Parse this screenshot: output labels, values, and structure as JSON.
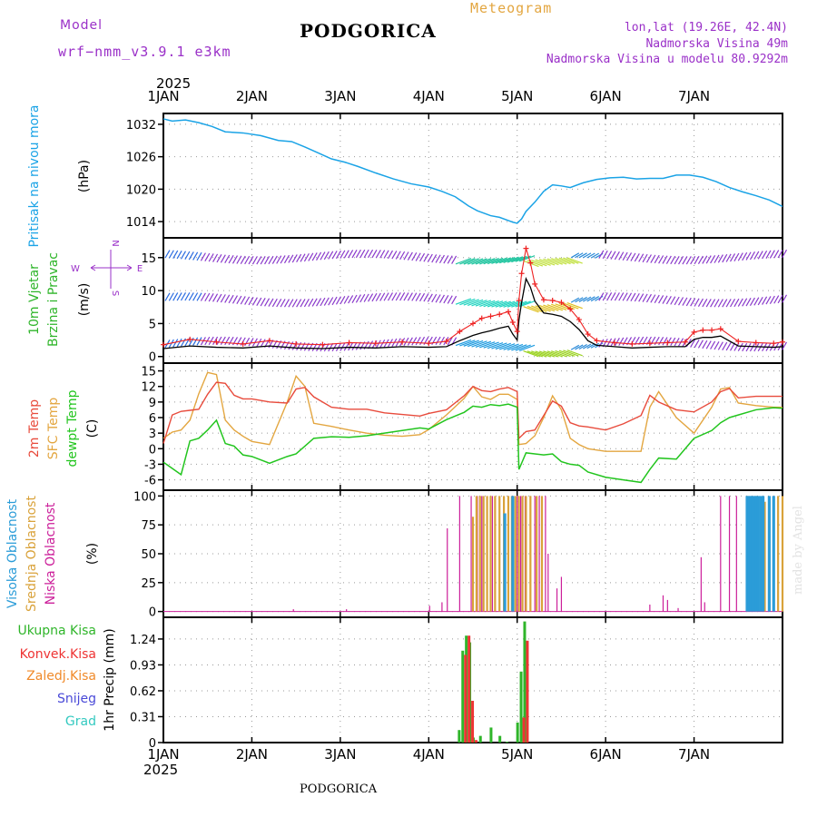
{
  "header": {
    "model_label": "Model",
    "model_name": "wrf−nmm_v3.9.1  e3km",
    "location": "PODGORICA",
    "product": "Meteogram",
    "lonlat": "lon,lat (19.26E, 42.4N)",
    "elevation": "Nadmorska Visina 49m",
    "model_elevation": "Nadmorska Visina u modelu 80.9292m"
  },
  "footer": {
    "location": "PODGORICA",
    "watermark": "made by Angel"
  },
  "colors": {
    "pressure": "#1aa3e6",
    "speed": "#000000",
    "gust": "#ee2222",
    "temp2m": "#e84b3c",
    "sfc": "#e3a640",
    "dew": "#22c51e",
    "high": "#2b9cd8",
    "mid": "#d9a23a",
    "low": "#cc1f9a",
    "total": "#2fb52a",
    "conv": "#ee3333",
    "frozen": "#f08a2a",
    "snow": "#4a4ad8",
    "grad": "#33c9c0",
    "wind_upper": "#9a30c8"
  },
  "time_axis": {
    "year": "2025",
    "days": [
      "1JAN",
      "2JAN",
      "3JAN",
      "4JAN",
      "5JAN",
      "6JAN",
      "7JAN"
    ]
  },
  "chart_data": [
    {
      "type": "line",
      "id": "pressure",
      "ylabel": "(hPa)",
      "title": "Pritisak na nivou mora",
      "yticks": [
        1014,
        1020,
        1026,
        1032
      ],
      "ylim": [
        1011,
        1034
      ],
      "series": [
        {
          "name": "MSLP",
          "x": [
            0,
            0.1,
            0.25,
            0.4,
            0.55,
            0.7,
            0.9,
            1.1,
            1.3,
            1.45,
            1.6,
            1.75,
            1.9,
            2.05,
            2.2,
            2.4,
            2.6,
            2.8,
            3.0,
            3.15,
            3.3,
            3.45,
            3.55,
            3.7,
            3.8,
            3.9,
            3.95,
            4.0,
            4.05,
            4.1,
            4.2,
            4.3,
            4.4,
            4.5,
            4.6,
            4.75,
            4.9,
            5.05,
            5.2,
            5.35,
            5.5,
            5.65,
            5.8,
            5.95,
            6.1,
            6.25,
            6.4,
            6.55,
            6.7,
            6.85,
            7.0
          ],
          "values": [
            1033,
            1032.6,
            1032.8,
            1032.3,
            1031.6,
            1030.6,
            1030.4,
            1029.9,
            1029.0,
            1028.8,
            1027.8,
            1026.7,
            1025.6,
            1025.0,
            1024.2,
            1023.0,
            1021.9,
            1021.0,
            1020.4,
            1019.6,
            1018.6,
            1016.9,
            1016.0,
            1015.1,
            1014.8,
            1014.2,
            1013.9,
            1013.7,
            1014.5,
            1015.9,
            1017.6,
            1019.6,
            1020.8,
            1020.6,
            1020.3,
            1021.2,
            1021.8,
            1022.1,
            1022.2,
            1021.9,
            1022.0,
            1022.0,
            1022.6,
            1022.6,
            1022.2,
            1021.4,
            1020.3,
            1019.5,
            1018.8,
            1018.0,
            1016.8
          ]
        }
      ]
    },
    {
      "type": "line",
      "id": "wind",
      "title": "10m Vjetar Brzina i Pravac",
      "ylabel": "(m/s)",
      "compass": {
        "n": "N",
        "s": "S",
        "e": "E",
        "w": "W"
      },
      "yticks": [
        0,
        5,
        10,
        15
      ],
      "ylim": [
        -1,
        18
      ],
      "series": [
        {
          "name": "speed",
          "x": [
            0,
            0.3,
            0.6,
            0.9,
            1.2,
            1.5,
            1.8,
            2.1,
            2.4,
            2.7,
            3.0,
            3.2,
            3.35,
            3.5,
            3.6,
            3.7,
            3.8,
            3.9,
            3.95,
            4.0,
            4.02,
            4.05,
            4.1,
            4.15,
            4.2,
            4.3,
            4.4,
            4.5,
            4.6,
            4.7,
            4.8,
            4.9,
            5.1,
            5.3,
            5.5,
            5.7,
            5.9,
            6.0,
            6.1,
            6.2,
            6.3,
            6.5,
            6.7,
            6.9,
            7.0
          ],
          "values": [
            1.2,
            1.6,
            1.4,
            1.3,
            1.6,
            1.3,
            1.2,
            1.4,
            1.3,
            1.5,
            1.4,
            1.5,
            2.4,
            3.2,
            3.6,
            3.9,
            4.3,
            4.6,
            3.4,
            2.5,
            5.5,
            8.2,
            11.8,
            10.5,
            8.4,
            6.6,
            6.4,
            6.1,
            5.3,
            4.1,
            2.4,
            1.7,
            1.5,
            1.3,
            1.4,
            1.5,
            1.5,
            2.6,
            2.9,
            2.9,
            3.1,
            1.6,
            1.5,
            1.4,
            1.5
          ]
        },
        {
          "name": "gust",
          "x": [
            0,
            0.3,
            0.6,
            0.9,
            1.2,
            1.5,
            1.8,
            2.1,
            2.4,
            2.7,
            3.0,
            3.2,
            3.35,
            3.5,
            3.6,
            3.7,
            3.8,
            3.9,
            3.95,
            4.0,
            4.02,
            4.05,
            4.1,
            4.15,
            4.2,
            4.3,
            4.4,
            4.5,
            4.6,
            4.7,
            4.8,
            4.9,
            5.1,
            5.3,
            5.5,
            5.7,
            5.9,
            6.0,
            6.1,
            6.2,
            6.3,
            6.5,
            6.7,
            6.9,
            7.0
          ],
          "values": [
            1.8,
            2.6,
            2.2,
            1.9,
            2.4,
            1.9,
            1.8,
            2.1,
            2.0,
            2.2,
            2.0,
            2.3,
            3.8,
            5.0,
            5.8,
            6.1,
            6.4,
            6.8,
            5.2,
            3.8,
            8.5,
            12.6,
            16.4,
            14.2,
            11.0,
            8.6,
            8.5,
            8.2,
            7.2,
            5.6,
            3.4,
            2.4,
            2.1,
            1.9,
            2.0,
            2.1,
            2.2,
            3.7,
            4.0,
            4.0,
            4.2,
            2.3,
            2.1,
            2.0,
            2.2
          ]
        }
      ]
    },
    {
      "type": "line",
      "id": "temperature",
      "ylabel": "(C)",
      "titles": [
        "2m Temp",
        "SFC Temp",
        "dewpt Temp"
      ],
      "yticks": [
        -6,
        -3,
        0,
        3,
        6,
        9,
        12,
        15
      ],
      "ylim": [
        -8,
        16.5
      ],
      "series": [
        {
          "name": "2m Temp",
          "x": [
            0,
            0.1,
            0.2,
            0.3,
            0.4,
            0.5,
            0.6,
            0.7,
            0.8,
            0.9,
            1.0,
            1.2,
            1.4,
            1.5,
            1.6,
            1.7,
            1.9,
            2.1,
            2.3,
            2.5,
            2.7,
            2.9,
            3.0,
            3.2,
            3.4,
            3.5,
            3.6,
            3.7,
            3.8,
            3.9,
            4.0,
            4.02,
            4.1,
            4.2,
            4.3,
            4.4,
            4.5,
            4.6,
            4.7,
            4.8,
            5.0,
            5.2,
            5.4,
            5.5,
            5.6,
            5.8,
            6.0,
            6.2,
            6.3,
            6.4,
            6.5,
            6.7,
            6.9,
            7.0
          ],
          "values": [
            1,
            6.5,
            7.2,
            7.4,
            7.6,
            10.5,
            12.8,
            12.6,
            10.3,
            9.6,
            9.6,
            9.0,
            8.8,
            11.5,
            11.8,
            10.0,
            8.0,
            7.6,
            7.6,
            6.9,
            6.6,
            6.3,
            6.8,
            7.5,
            10.2,
            12.0,
            11.2,
            11.0,
            11.5,
            11.8,
            11.0,
            2.0,
            3.3,
            3.6,
            6.4,
            9.2,
            8.2,
            5.0,
            4.4,
            4.2,
            3.6,
            4.8,
            6.4,
            10.3,
            9.0,
            7.5,
            7.1,
            9.0,
            11.0,
            11.6,
            9.8,
            10.1,
            10.1,
            10.1
          ]
        },
        {
          "name": "SFC Temp",
          "x": [
            0,
            0.1,
            0.2,
            0.3,
            0.4,
            0.5,
            0.6,
            0.7,
            0.8,
            0.9,
            1.0,
            1.2,
            1.4,
            1.5,
            1.6,
            1.7,
            1.9,
            2.1,
            2.3,
            2.5,
            2.7,
            2.9,
            3.0,
            3.2,
            3.4,
            3.5,
            3.6,
            3.7,
            3.8,
            3.9,
            4.0,
            4.02,
            4.1,
            4.2,
            4.3,
            4.4,
            4.5,
            4.6,
            4.7,
            4.8,
            5.0,
            5.2,
            5.4,
            5.5,
            5.6,
            5.8,
            6.0,
            6.2,
            6.3,
            6.4,
            6.5,
            6.7,
            6.9,
            7.0
          ],
          "values": [
            2.0,
            3.2,
            3.6,
            5.5,
            10.6,
            14.7,
            14.3,
            5.5,
            3.6,
            2.4,
            1.4,
            0.8,
            9.0,
            14.0,
            12.0,
            4.9,
            4.3,
            3.6,
            3.0,
            2.6,
            2.4,
            2.7,
            3.7,
            6.5,
            9.7,
            12.0,
            10.0,
            9.5,
            10.5,
            10.5,
            9.5,
            0.8,
            1.0,
            2.5,
            6.0,
            10.2,
            7.5,
            2.0,
            0.8,
            0.0,
            -0.5,
            -0.5,
            -0.5,
            8.0,
            11.0,
            6.0,
            3.0,
            8.0,
            11.5,
            11.8,
            8.8,
            8.3,
            8.0,
            8.0
          ]
        },
        {
          "name": "dewpt Temp",
          "x": [
            0,
            0.1,
            0.2,
            0.3,
            0.4,
            0.5,
            0.6,
            0.7,
            0.8,
            0.9,
            1.0,
            1.2,
            1.4,
            1.5,
            1.6,
            1.7,
            1.9,
            2.1,
            2.3,
            2.5,
            2.7,
            2.9,
            3.0,
            3.2,
            3.4,
            3.5,
            3.6,
            3.7,
            3.8,
            3.9,
            4.0,
            4.02,
            4.1,
            4.2,
            4.3,
            4.4,
            4.5,
            4.6,
            4.7,
            4.8,
            5.0,
            5.2,
            5.4,
            5.5,
            5.6,
            5.8,
            6.0,
            6.2,
            6.3,
            6.4,
            6.5,
            6.7,
            6.9,
            7.0
          ],
          "values": [
            -2.6,
            -3.8,
            -5.0,
            1.5,
            2.0,
            3.6,
            5.5,
            1.0,
            0.5,
            -1.2,
            -1.5,
            -2.8,
            -1.5,
            -1.0,
            0.5,
            2.0,
            2.3,
            2.2,
            2.5,
            3.0,
            3.5,
            4.0,
            3.8,
            5.6,
            7.0,
            8.2,
            8.0,
            8.5,
            8.3,
            8.6,
            8.0,
            -4.0,
            -0.8,
            -1.0,
            -1.2,
            -1.0,
            -2.5,
            -3.0,
            -3.2,
            -4.5,
            -5.5,
            -6.0,
            -6.5,
            -4.0,
            -1.8,
            -2.0,
            2.0,
            3.5,
            5.0,
            6.0,
            6.5,
            7.5,
            7.9,
            7.8
          ]
        }
      ]
    },
    {
      "type": "bar",
      "id": "clouds",
      "ylabel": "(%)",
      "titles": [
        "Visoka Oblacnost",
        "Srednja Oblacnost",
        "Niska Oblacnost"
      ],
      "yticks": [
        0,
        25,
        50,
        75,
        100
      ],
      "ylim": [
        -5,
        105
      ],
      "series": [
        {
          "name": "Niska",
          "x": [
            1.47,
            2.07,
            3.01,
            3.15,
            3.21,
            3.35,
            3.48,
            3.55,
            3.6,
            3.72,
            3.9,
            3.95,
            4.0,
            4.04,
            4.09,
            4.15,
            4.2,
            4.25,
            4.32,
            4.35,
            4.45,
            4.5,
            5.5,
            5.65,
            5.7,
            5.82,
            6.08,
            6.12,
            6.3,
            6.4,
            6.48,
            6.9
          ],
          "values": [
            2,
            2,
            5,
            8,
            72,
            100,
            100,
            100,
            100,
            100,
            100,
            100,
            100,
            100,
            100,
            100,
            100,
            100,
            100,
            50,
            20,
            30,
            6,
            14,
            10,
            3,
            47,
            8,
            100,
            100,
            100,
            100
          ]
        },
        {
          "name": "Srednja",
          "x": [
            3.5,
            3.54,
            3.58,
            3.62,
            3.66,
            3.7,
            3.75,
            3.8,
            3.85,
            3.9,
            3.94,
            3.98,
            4.02,
            4.06,
            4.1,
            4.15,
            4.22,
            4.28,
            6.6,
            6.7,
            6.8,
            6.95,
            7.0
          ],
          "values": [
            82,
            100,
            100,
            100,
            100,
            100,
            100,
            100,
            100,
            100,
            100,
            100,
            100,
            100,
            100,
            100,
            100,
            100,
            100,
            100,
            95,
            100,
            100
          ]
        },
        {
          "name": "Visoka",
          "x": [
            3.86,
            3.95,
            6.6,
            6.62,
            6.64,
            6.66,
            6.68,
            6.7,
            6.72,
            6.75,
            6.78,
            6.85,
            6.9
          ],
          "values": [
            85,
            100,
            100,
            100,
            100,
            100,
            100,
            100,
            100,
            100,
            100,
            100,
            100
          ]
        }
      ]
    },
    {
      "type": "bar",
      "id": "precip",
      "ylabel": "1hr Precip (mm)",
      "titles": [
        "Ukupna Kisa",
        "Konvek.Kisa",
        "Zaledj.Kisa",
        "Snijeg",
        "Grad"
      ],
      "yticks": [
        0,
        0.31,
        0.62,
        0.93,
        1.24
      ],
      "ylim": [
        0,
        1.5
      ],
      "series": [
        {
          "name": "Ukupna Kisa",
          "x": [
            3.36,
            3.4,
            3.44,
            3.48,
            3.52,
            3.6,
            3.72,
            3.82,
            3.9,
            4.02,
            4.06,
            4.1
          ],
          "values": [
            0.15,
            1.1,
            1.28,
            1.2,
            0.06,
            0.08,
            0.18,
            0.08,
            0.01,
            0.24,
            0.85,
            1.45
          ]
        },
        {
          "name": "Konvek.Kisa",
          "x": [
            3.4,
            3.44,
            3.48,
            3.52,
            4.06,
            4.1
          ],
          "values": [
            1.05,
            1.28,
            0.5,
            0.03,
            0.3,
            1.22
          ]
        }
      ]
    }
  ]
}
